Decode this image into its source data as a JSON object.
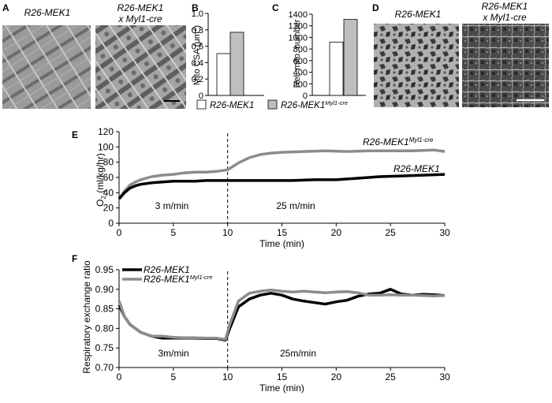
{
  "panels": {
    "A": {
      "letter": "A",
      "label_left": "R26-MEK1",
      "label_right_1": "R26-MEK1",
      "label_right_2": "x Myl1-cre"
    },
    "B": {
      "letter": "B",
      "ylabel_main": "Mito CSA (μm",
      "ylabel_sup": "2",
      "ylabel_end": ")"
    },
    "C": {
      "letter": "C",
      "ylabel": "Rel. mito. number"
    },
    "D": {
      "letter": "D",
      "label_left": "R26-MEK1",
      "label_right_1": "R26-MEK1",
      "label_right_2": "x Myl1-cre"
    },
    "E": {
      "letter": "E",
      "phase1": "3 m/min",
      "phase2": "25 m/min",
      "series_top_main": "R26-MEK1",
      "series_top_sup": "Myl1-cre",
      "series_bottom": "R26-MEK1"
    },
    "F": {
      "letter": "F",
      "phase1": "3m/min",
      "phase2": "25m/min"
    }
  },
  "bar_legend": {
    "item1": "R26-MEK1",
    "item2_main": "R26-MEK1",
    "item2_sup": "Myl1-cre"
  },
  "line_legend": {
    "item1": "R26-MEK1",
    "item2_main": "R26-MEK1",
    "item2_sup": "Myl1-cre"
  },
  "colors": {
    "control": "#ffffff",
    "mutant": "#bfbfbf",
    "line_control": "#000000",
    "line_mutant": "#8c8c8c"
  },
  "chart_data": [
    {
      "type": "bar",
      "panel": "B",
      "categories": [
        "R26-MEK1",
        "R26-MEK1 Myl1-cre"
      ],
      "values": [
        0.51,
        0.77
      ],
      "ylabel": "Mito CSA (μm2)",
      "ylim": [
        0,
        1.0
      ],
      "yticks": [
        "0",
        "0.2",
        "0.4",
        "0.6",
        "0.8",
        "1.0"
      ]
    },
    {
      "type": "bar",
      "panel": "C",
      "categories": [
        "R26-MEK1",
        "R26-MEK1 Myl1-cre"
      ],
      "values": [
        920,
        1310
      ],
      "ylabel": "Rel. mito. number",
      "ylim": [
        0,
        1400
      ],
      "yticks": [
        "0",
        "200",
        "400",
        "600",
        "800",
        "1000",
        "1200",
        "1400"
      ]
    },
    {
      "type": "line",
      "panel": "E",
      "xlabel": "Time (min)",
      "ylabel": "O2 (ml/kg/hr)",
      "xlim": [
        0,
        30
      ],
      "ylim": [
        0,
        120
      ],
      "xticks": [
        "0",
        "5",
        "10",
        "15",
        "20",
        "25",
        "30"
      ],
      "yticks": [
        "0",
        "20",
        "40",
        "60",
        "80",
        "100",
        "120"
      ],
      "vline": 10,
      "series": [
        {
          "name": "R26-MEK1 Myl1-cre",
          "x": [
            0,
            0.5,
            1,
            1.5,
            2,
            3,
            4,
            5,
            6,
            7,
            8,
            9,
            10,
            11,
            12,
            13,
            14,
            15,
            17,
            19,
            21,
            23,
            25,
            27,
            29,
            30
          ],
          "y": [
            32,
            42,
            50,
            54,
            57,
            61,
            63,
            64,
            66,
            67,
            67,
            68,
            70,
            79,
            86,
            90,
            92,
            93,
            94,
            95,
            94,
            95,
            95,
            95,
            96,
            94
          ]
        },
        {
          "name": "R26-MEK1",
          "x": [
            0,
            0.5,
            1,
            1.5,
            2,
            3,
            4,
            5,
            6,
            7,
            8,
            9,
            10,
            12,
            14,
            16,
            18,
            20,
            22,
            24,
            26,
            28,
            30
          ],
          "y": [
            32,
            40,
            46,
            49,
            51,
            53,
            54,
            55,
            55,
            55,
            56,
            56,
            56,
            56,
            56,
            56,
            57,
            57,
            59,
            61,
            62,
            63,
            64
          ]
        }
      ]
    },
    {
      "type": "line",
      "panel": "F",
      "xlabel": "Time (min)",
      "ylabel": "Respiratory exchange ratio",
      "xlim": [
        0,
        30
      ],
      "ylim": [
        0.7,
        0.95
      ],
      "xticks": [
        "0",
        "5",
        "10",
        "15",
        "20",
        "25",
        "30"
      ],
      "yticks": [
        "0.70",
        "0.75",
        "0.80",
        "0.85",
        "0.90",
        "0.95"
      ],
      "vline": 10,
      "series": [
        {
          "name": "R26-MEK1",
          "x": [
            0,
            0.5,
            1,
            2,
            3,
            4,
            5,
            6,
            7,
            8,
            9,
            9.8,
            10.2,
            11,
            12,
            13,
            14,
            15,
            16,
            17,
            18,
            19,
            20,
            21,
            22,
            23,
            24,
            25,
            26,
            27,
            28,
            29,
            30
          ],
          "y": [
            0.86,
            0.83,
            0.81,
            0.79,
            0.78,
            0.775,
            0.775,
            0.775,
            0.775,
            0.774,
            0.774,
            0.77,
            0.8,
            0.855,
            0.875,
            0.885,
            0.89,
            0.885,
            0.875,
            0.87,
            0.866,
            0.862,
            0.868,
            0.872,
            0.882,
            0.888,
            0.89,
            0.9,
            0.888,
            0.885,
            0.887,
            0.886,
            0.884
          ]
        },
        {
          "name": "R26-MEK1 Myl1-cre",
          "x": [
            0,
            0.5,
            1,
            2,
            3,
            4,
            5,
            6,
            7,
            8,
            9,
            9.8,
            10.2,
            11,
            12,
            13,
            14,
            15,
            16,
            17,
            18,
            19,
            20,
            21,
            22,
            23,
            24,
            25,
            26,
            27,
            28,
            29,
            30
          ],
          "y": [
            0.87,
            0.83,
            0.81,
            0.79,
            0.78,
            0.78,
            0.777,
            0.776,
            0.776,
            0.775,
            0.775,
            0.772,
            0.81,
            0.87,
            0.89,
            0.895,
            0.898,
            0.895,
            0.893,
            0.895,
            0.893,
            0.891,
            0.893,
            0.894,
            0.891,
            0.885,
            0.885,
            0.886,
            0.885,
            0.885,
            0.884,
            0.883,
            0.884
          ]
        }
      ]
    }
  ]
}
